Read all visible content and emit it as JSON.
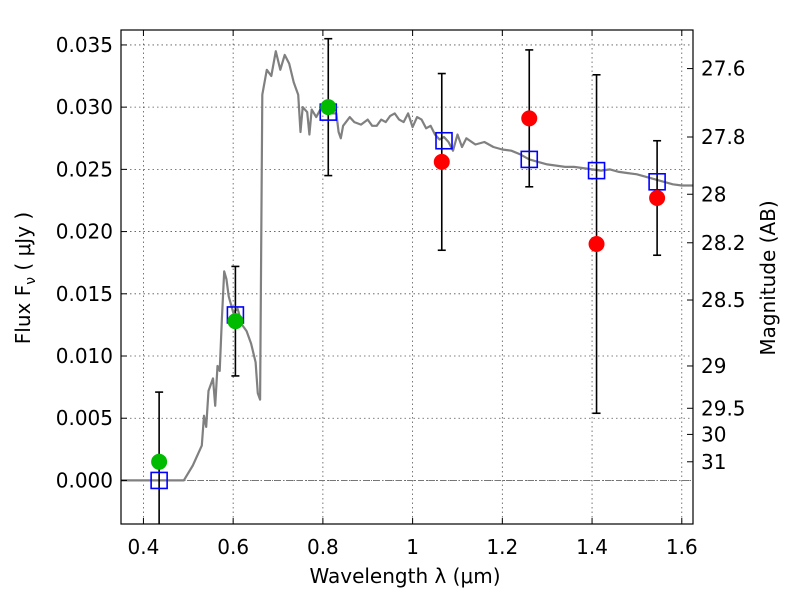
{
  "chart_data": {
    "type": "scatter",
    "title": "",
    "xlabel": "Wavelength  λ (μm)",
    "ylabel": "Flux  F",
    "ylabel_sub": "ν",
    "ylabel_unit": "  ( μJy )",
    "y2label": "Magnitude (AB)",
    "xlim": [
      0.35,
      1.625
    ],
    "ylim": [
      -0.0035,
      0.0362
    ],
    "grid": true,
    "x_ticks": [
      0.4,
      0.6,
      0.8,
      1.0,
      1.2,
      1.4,
      1.6
    ],
    "x_tick_labels": [
      "0.4",
      "0.6",
      "0.8",
      "1",
      "1.2",
      "1.4",
      "1.6"
    ],
    "y_ticks": [
      0.0,
      0.005,
      0.01,
      0.015,
      0.02,
      0.025,
      0.03,
      0.035
    ],
    "y_tick_labels": [
      "0.000",
      "0.005",
      "0.010",
      "0.015",
      "0.020",
      "0.025",
      "0.030",
      "0.035"
    ],
    "y2_ticks": [
      {
        "label": "27.6",
        "flux": 0.0331
      },
      {
        "label": "27.8",
        "flux": 0.0276
      },
      {
        "label": "28",
        "flux": 0.023
      },
      {
        "label": "28.2",
        "flux": 0.0191
      },
      {
        "label": "28.5",
        "flux": 0.0145
      },
      {
        "label": "29",
        "flux": 0.0092
      },
      {
        "label": "29.5",
        "flux": 0.0058
      },
      {
        "label": "30",
        "flux": 0.0037
      },
      {
        "label": "31",
        "flux": 0.0015
      }
    ],
    "zero_line": 0.0,
    "series": [
      {
        "kind": "spectrum",
        "color": "#808080",
        "points": [
          [
            0.35,
            0.0
          ],
          [
            0.49,
            0.0
          ],
          [
            0.51,
            0.0012
          ],
          [
            0.53,
            0.0028
          ],
          [
            0.535,
            0.0052
          ],
          [
            0.54,
            0.0043
          ],
          [
            0.545,
            0.0072
          ],
          [
            0.555,
            0.0082
          ],
          [
            0.56,
            0.006
          ],
          [
            0.565,
            0.0092
          ],
          [
            0.57,
            0.0088
          ],
          [
            0.575,
            0.013
          ],
          [
            0.58,
            0.0168
          ],
          [
            0.585,
            0.0162
          ],
          [
            0.59,
            0.0148
          ],
          [
            0.6,
            0.0135
          ],
          [
            0.61,
            0.0138
          ],
          [
            0.62,
            0.0125
          ],
          [
            0.63,
            0.012
          ],
          [
            0.64,
            0.011
          ],
          [
            0.65,
            0.0095
          ],
          [
            0.655,
            0.007
          ],
          [
            0.66,
            0.0065
          ],
          [
            0.665,
            0.031
          ],
          [
            0.675,
            0.033
          ],
          [
            0.685,
            0.0325
          ],
          [
            0.695,
            0.0345
          ],
          [
            0.705,
            0.033
          ],
          [
            0.715,
            0.0342
          ],
          [
            0.725,
            0.0335
          ],
          [
            0.735,
            0.032
          ],
          [
            0.745,
            0.031
          ],
          [
            0.75,
            0.028
          ],
          [
            0.755,
            0.03
          ],
          [
            0.765,
            0.0296
          ],
          [
            0.77,
            0.0278
          ],
          [
            0.775,
            0.0298
          ],
          [
            0.785,
            0.0292
          ],
          [
            0.8,
            0.0302
          ],
          [
            0.81,
            0.03
          ],
          [
            0.82,
            0.0295
          ],
          [
            0.83,
            0.0295
          ],
          [
            0.835,
            0.028
          ],
          [
            0.84,
            0.0275
          ],
          [
            0.845,
            0.0285
          ],
          [
            0.86,
            0.0292
          ],
          [
            0.87,
            0.0288
          ],
          [
            0.885,
            0.0286
          ],
          [
            0.9,
            0.029
          ],
          [
            0.91,
            0.0285
          ],
          [
            0.92,
            0.0285
          ],
          [
            0.93,
            0.029
          ],
          [
            0.94,
            0.0288
          ],
          [
            0.95,
            0.0293
          ],
          [
            0.96,
            0.0295
          ],
          [
            0.97,
            0.029
          ],
          [
            0.98,
            0.0288
          ],
          [
            0.99,
            0.0295
          ],
          [
            1.0,
            0.0284
          ],
          [
            1.01,
            0.0292
          ],
          [
            1.02,
            0.029
          ],
          [
            1.03,
            0.0283
          ],
          [
            1.04,
            0.0285
          ],
          [
            1.05,
            0.0278
          ],
          [
            1.06,
            0.0274
          ],
          [
            1.07,
            0.0276
          ],
          [
            1.08,
            0.0272
          ],
          [
            1.09,
            0.0265
          ],
          [
            1.1,
            0.0278
          ],
          [
            1.11,
            0.0268
          ],
          [
            1.12,
            0.0275
          ],
          [
            1.14,
            0.027
          ],
          [
            1.16,
            0.0272
          ],
          [
            1.18,
            0.0268
          ],
          [
            1.2,
            0.0266
          ],
          [
            1.22,
            0.0265
          ],
          [
            1.24,
            0.0262
          ],
          [
            1.26,
            0.0258
          ],
          [
            1.28,
            0.0256
          ],
          [
            1.3,
            0.0254
          ],
          [
            1.32,
            0.0253
          ],
          [
            1.34,
            0.0252
          ],
          [
            1.36,
            0.0252
          ],
          [
            1.38,
            0.0251
          ],
          [
            1.4,
            0.025
          ],
          [
            1.42,
            0.0249
          ],
          [
            1.44,
            0.025
          ],
          [
            1.46,
            0.0248
          ],
          [
            1.48,
            0.0247
          ],
          [
            1.5,
            0.0246
          ],
          [
            1.52,
            0.0244
          ],
          [
            1.54,
            0.0242
          ],
          [
            1.56,
            0.024
          ],
          [
            1.58,
            0.0238
          ],
          [
            1.6,
            0.0237
          ],
          [
            1.625,
            0.0237
          ]
        ]
      },
      {
        "kind": "model",
        "marker": "square",
        "color": "#0000ff",
        "x": [
          0.435,
          0.605,
          0.812,
          1.07,
          1.26,
          1.41,
          1.545
        ],
        "y": [
          0.0,
          0.0133,
          0.0296,
          0.0273,
          0.0258,
          0.0249,
          0.024
        ]
      },
      {
        "kind": "detection",
        "marker": "circle",
        "color": "#00bb00",
        "x": [
          0.435,
          0.605,
          0.812
        ],
        "y": [
          0.0015,
          0.0128,
          0.03
        ],
        "yerr": [
          0.0056,
          0.0044,
          0.0055
        ]
      },
      {
        "kind": "upper-limit",
        "marker": "circle",
        "color": "#ff0000",
        "x": [
          1.065,
          1.26,
          1.41,
          1.545
        ],
        "y": [
          0.0256,
          0.0291,
          0.019,
          0.0227
        ],
        "yerr": [
          0.0071,
          0.0055,
          0.0136,
          0.0046
        ]
      }
    ]
  }
}
